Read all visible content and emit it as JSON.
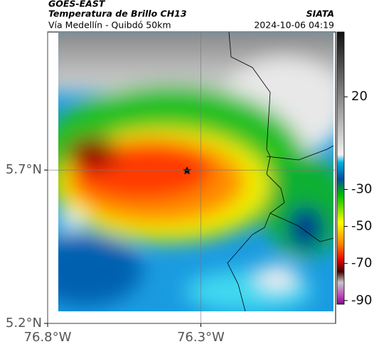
{
  "header": {
    "title": "GOES-EAST",
    "subtitle": "Temperatura de Brillo CH13",
    "source": "SIATA",
    "region": "Vía Medellín - Quibdó 50km",
    "datetime": "2024-10-06 04:19"
  },
  "map": {
    "lon_range": [
      -76.8,
      -75.86
    ],
    "lat_range": [
      5.2,
      6.15
    ],
    "lon_ticks": [
      {
        "value": -76.8,
        "label": "76.8°W"
      },
      {
        "value": -76.3,
        "label": "76.3°W"
      }
    ],
    "lat_ticks": [
      {
        "value": 5.7,
        "label": "5.7°N"
      },
      {
        "value": 5.2,
        "label": "5.2°N"
      }
    ]
  },
  "colorbar": {
    "range": [
      -92,
      55
    ],
    "ticks": [
      20,
      -30,
      -50,
      -70,
      -90
    ]
  }
}
